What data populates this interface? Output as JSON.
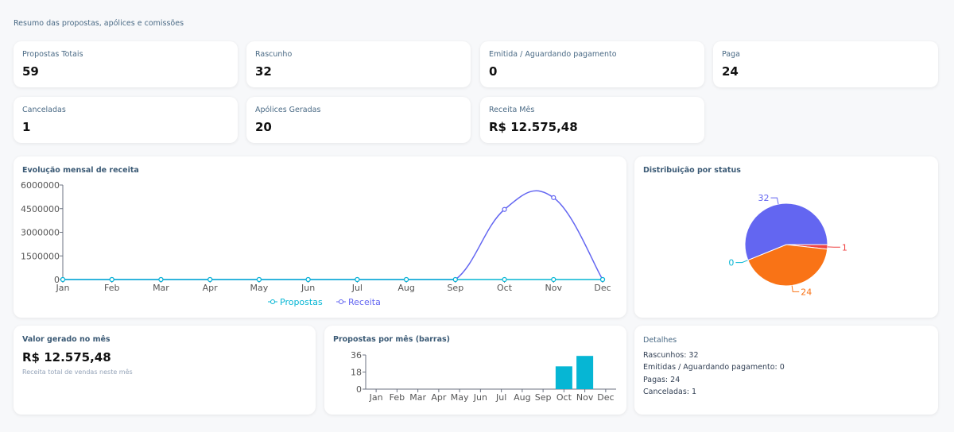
{
  "subtitle": "Resumo das propostas, apólices e comissões",
  "kpis": [
    {
      "label": "Propostas Totais",
      "value": "59"
    },
    {
      "label": "Rascunho",
      "value": "32"
    },
    {
      "label": "Emitida / Aguardando pagamento",
      "value": "0"
    },
    {
      "label": "Paga",
      "value": "24"
    },
    {
      "label": "Canceladas",
      "value": "1"
    },
    {
      "label": "Apólices Geradas",
      "value": "20"
    },
    {
      "label": "Receita Mês",
      "value": "R$ 12.575,48"
    }
  ],
  "chart_data": [
    {
      "type": "line",
      "title": "Evolução mensal de receita",
      "categories": [
        "Jan",
        "Feb",
        "Mar",
        "Apr",
        "May",
        "Jun",
        "Jul",
        "Aug",
        "Sep",
        "Oct",
        "Nov",
        "Dec"
      ],
      "yticks": [
        "0",
        "1500000",
        "3000000",
        "4500000",
        "6000000"
      ],
      "ylim": [
        0,
        6000000
      ],
      "legend": "bottom",
      "series": [
        {
          "name": "Propostas",
          "color": "#06b6d4",
          "values": [
            0,
            0,
            0,
            0,
            0,
            0,
            0,
            0,
            0,
            24,
            35,
            0
          ]
        },
        {
          "name": "Receita",
          "color": "#6366f1",
          "values": [
            0,
            0,
            0,
            0,
            0,
            0,
            0,
            0,
            0,
            4450000,
            5200000,
            0
          ]
        }
      ]
    },
    {
      "type": "pie",
      "title": "Distribuição por status",
      "slices": [
        {
          "value": 1,
          "label": "1",
          "color": "#ef4444"
        },
        {
          "value": 24,
          "label": "24",
          "color": "#f97316"
        },
        {
          "value": 0,
          "label": "0",
          "color": "#06b6d4"
        },
        {
          "value": 32,
          "label": "32",
          "color": "#6366f1"
        }
      ]
    },
    {
      "type": "bar",
      "title": "Propostas por mês (barras)",
      "categories": [
        "Jan",
        "Feb",
        "Mar",
        "Apr",
        "May",
        "Jun",
        "Jul",
        "Aug",
        "Sep",
        "Oct",
        "Nov",
        "Dec"
      ],
      "values": [
        0,
        0,
        0,
        0,
        0,
        0,
        0,
        0,
        0,
        24,
        35,
        0
      ],
      "yticks": [
        "0",
        "18",
        "36"
      ],
      "ylim": [
        0,
        36
      ],
      "color": "#06b6d4"
    }
  ],
  "valor": {
    "title": "Valor gerado no mês",
    "value": "R$ 12.575,48",
    "note": "Receita total de vendas neste mês"
  },
  "detalhes": {
    "title": "Detalhes",
    "lines": [
      "Rascunhos: 32",
      "Emitidas / Aguardando pagamento: 0",
      "Pagas: 24",
      "Canceladas: 1"
    ]
  }
}
